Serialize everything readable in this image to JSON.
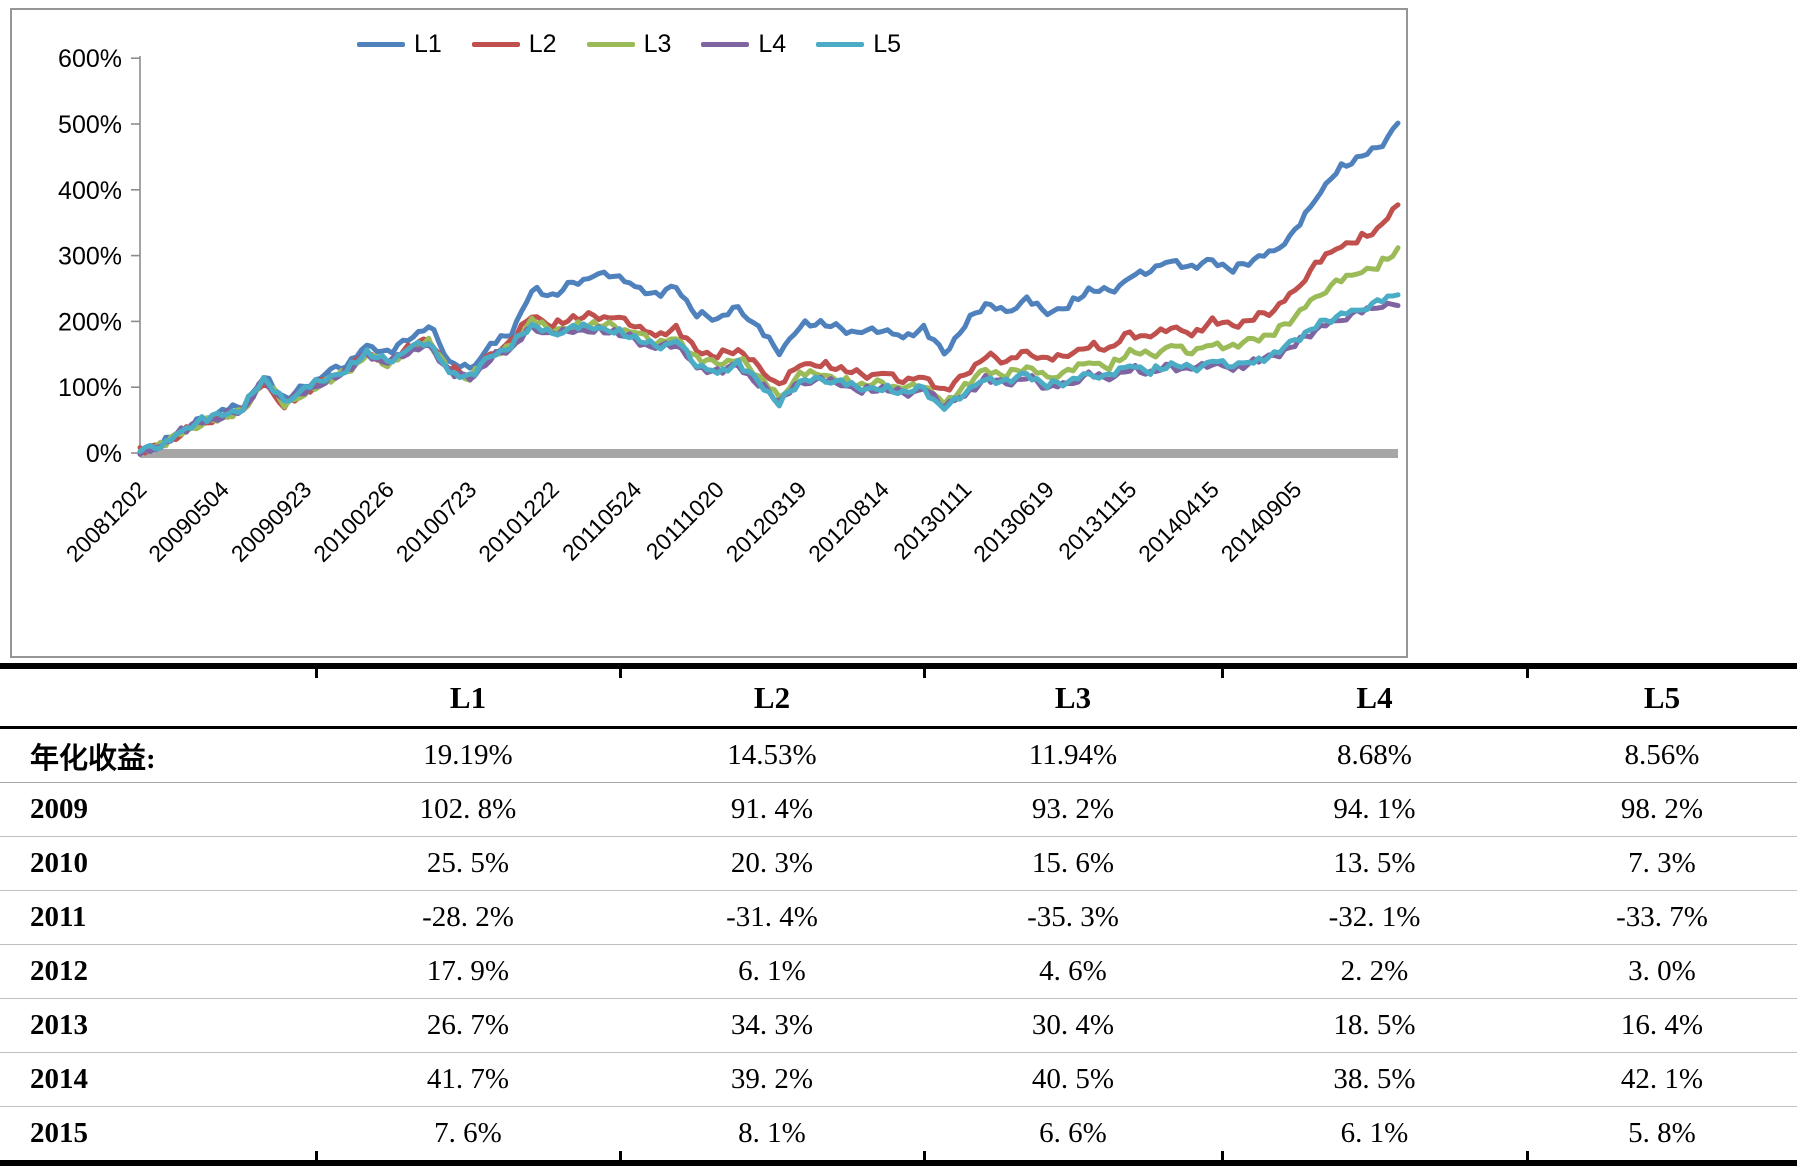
{
  "chart": {
    "legend": [
      "L1",
      "L2",
      "L3",
      "L4",
      "L5"
    ],
    "colors": [
      "#4F81BD",
      "#C0504D",
      "#9BBB59",
      "#8064A2",
      "#4BACC6"
    ],
    "axis_color": "#8c8c8c",
    "baseline_color": "#a6a6a6",
    "y_tick_labels": [
      "600%",
      "500%",
      "400%",
      "300%",
      "200%",
      "100%",
      "0%"
    ],
    "x_tick_labels": [
      "20081202",
      "20090504",
      "20090923",
      "20100226",
      "20100723",
      "20101222",
      "20110524",
      "20111020",
      "20120319",
      "20120814",
      "20130111",
      "20130619",
      "20131115",
      "20140415",
      "20140905"
    ]
  },
  "chart_data": {
    "type": "line",
    "title": "",
    "xlabel": "",
    "ylabel": "",
    "y_unit": "%",
    "ylim": [
      0,
      600
    ],
    "y_ticks": [
      0,
      100,
      200,
      300,
      400,
      500,
      600
    ],
    "grid": false,
    "legend_position": "top",
    "x_tick_labels": [
      "20081202",
      "20090504",
      "20090923",
      "20100226",
      "20100723",
      "20101222",
      "20110524",
      "20111020",
      "20120319",
      "20120814",
      "20130111",
      "20130619",
      "20131115",
      "20140415",
      "20140905"
    ],
    "x_tick_point_indices": [
      0,
      4,
      8,
      12,
      16,
      20,
      24,
      28,
      32,
      36,
      40,
      44,
      48,
      52,
      56
    ],
    "points_per_series": 62,
    "series": [
      {
        "name": "L1",
        "color": "#4F81BD",
        "values": [
          2,
          12,
          35,
          52,
          62,
          72,
          118,
          82,
          100,
          120,
          135,
          165,
          150,
          172,
          195,
          140,
          128,
          162,
          182,
          250,
          238,
          258,
          268,
          272,
          255,
          238,
          252,
          210,
          205,
          222,
          188,
          152,
          195,
          198,
          188,
          182,
          188,
          178,
          188,
          150,
          195,
          228,
          215,
          232,
          212,
          225,
          248,
          245,
          265,
          278,
          295,
          280,
          292,
          278,
          295,
          308,
          335,
          385,
          430,
          448,
          462,
          500
        ]
      },
      {
        "name": "L2",
        "color": "#C0504D",
        "values": [
          2,
          10,
          30,
          45,
          55,
          65,
          108,
          72,
          92,
          110,
          125,
          152,
          138,
          158,
          172,
          128,
          118,
          150,
          168,
          210,
          195,
          205,
          208,
          205,
          195,
          180,
          188,
          155,
          148,
          158,
          132,
          100,
          135,
          136,
          128,
          118,
          120,
          110,
          118,
          92,
          118,
          148,
          140,
          155,
          140,
          148,
          165,
          158,
          182,
          175,
          192,
          182,
          200,
          192,
          205,
          218,
          248,
          285,
          310,
          325,
          340,
          375
        ]
      },
      {
        "name": "L3",
        "color": "#9BBB59",
        "values": [
          2,
          10,
          30,
          45,
          54,
          64,
          110,
          74,
          92,
          108,
          122,
          148,
          135,
          155,
          168,
          124,
          114,
          146,
          163,
          200,
          186,
          194,
          196,
          192,
          182,
          168,
          176,
          142,
          135,
          144,
          118,
          85,
          118,
          120,
          112,
          103,
          106,
          97,
          103,
          78,
          100,
          126,
          118,
          132,
          116,
          122,
          138,
          132,
          155,
          148,
          162,
          153,
          168,
          160,
          172,
          182,
          208,
          238,
          258,
          272,
          285,
          310
        ]
      },
      {
        "name": "L4",
        "color": "#8064A2",
        "values": [
          2,
          11,
          32,
          47,
          56,
          66,
          112,
          76,
          94,
          110,
          124,
          150,
          136,
          154,
          166,
          122,
          112,
          144,
          160,
          192,
          178,
          186,
          188,
          184,
          172,
          158,
          166,
          132,
          122,
          132,
          105,
          80,
          108,
          110,
          104,
          96,
          98,
          90,
          96,
          72,
          90,
          112,
          104,
          116,
          100,
          106,
          118,
          112,
          130,
          122,
          132,
          126,
          136,
          130,
          138,
          146,
          165,
          188,
          202,
          212,
          220,
          230
        ]
      },
      {
        "name": "L5",
        "color": "#4BACC6",
        "values": [
          2,
          12,
          34,
          49,
          58,
          68,
          115,
          78,
          96,
          113,
          127,
          153,
          138,
          157,
          170,
          124,
          114,
          147,
          163,
          196,
          181,
          189,
          191,
          187,
          175,
          161,
          169,
          134,
          124,
          135,
          107,
          75,
          110,
          113,
          106,
          97,
          100,
          92,
          98,
          65,
          92,
          115,
          107,
          119,
          103,
          109,
          121,
          115,
          133,
          125,
          135,
          128,
          138,
          133,
          141,
          149,
          170,
          193,
          208,
          218,
          228,
          240
        ]
      }
    ]
  },
  "table": {
    "header": [
      "",
      "L1",
      "L2",
      "L3",
      "L4",
      "L5"
    ],
    "rows": [
      {
        "label": "年化收益:",
        "values": [
          "19.19%",
          "14.53%",
          "11.94%",
          "8.68%",
          "8.56%"
        ]
      },
      {
        "label": "2009",
        "values": [
          "102. 8%",
          "91. 4%",
          "93. 2%",
          "94. 1%",
          "98. 2%"
        ]
      },
      {
        "label": "2010",
        "values": [
          "25. 5%",
          "20. 3%",
          "15. 6%",
          "13. 5%",
          "7. 3%"
        ]
      },
      {
        "label": "2011",
        "values": [
          "-28. 2%",
          "-31. 4%",
          "-35. 3%",
          "-32. 1%",
          "-33. 7%"
        ]
      },
      {
        "label": "2012",
        "values": [
          "17. 9%",
          "6. 1%",
          "4. 6%",
          "2. 2%",
          "3. 0%"
        ]
      },
      {
        "label": "2013",
        "values": [
          "26. 7%",
          "34. 3%",
          "30. 4%",
          "18. 5%",
          "16. 4%"
        ]
      },
      {
        "label": "2014",
        "values": [
          "41. 7%",
          "39. 2%",
          "40. 5%",
          "38. 5%",
          "42. 1%"
        ]
      },
      {
        "label": "2015",
        "values": [
          "7. 6%",
          "8. 1%",
          "6. 6%",
          "6. 1%",
          "5. 8%"
        ]
      }
    ]
  }
}
